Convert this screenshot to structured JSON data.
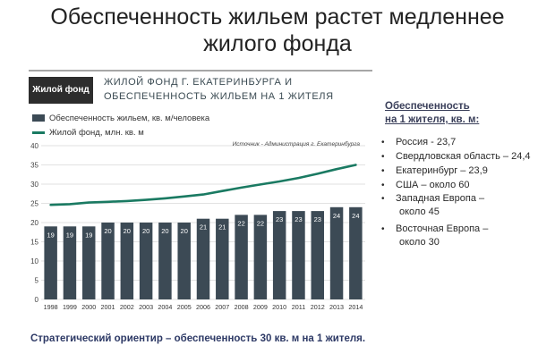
{
  "slide": {
    "title_line1": "Обеспеченность жильем растет медленнее",
    "title_line2": "жилого фонда",
    "bottom_note": "Стратегический ориентир – обеспеченность 30 кв. м на 1 жителя."
  },
  "chart_card": {
    "label": "Жилой фонд",
    "title_line1": "Жилой фонд г. Екатеринбурга и",
    "title_line2": "обеспеченность жильем на 1 жителя",
    "source": "Источник - Администрация г. Екатеринбурга"
  },
  "chart_data": {
    "type": "bar",
    "categories": [
      "1998",
      "1999",
      "2000",
      "2001",
      "2002",
      "2003",
      "2004",
      "2005",
      "2006",
      "2007",
      "2008",
      "2009",
      "2010",
      "2011",
      "2012",
      "2013",
      "2014"
    ],
    "series": [
      {
        "name": "Обеспеченность жильем, кв. м/человека",
        "type": "bar",
        "color": "#3c4a55",
        "values": [
          19,
          19,
          19,
          20,
          20,
          20,
          20,
          20,
          21,
          21,
          22,
          22,
          23,
          23,
          23,
          24,
          24
        ],
        "data_labels": [
          "19",
          "19",
          "19",
          "20",
          "20",
          "20",
          "20",
          "20",
          "21",
          "21",
          "22",
          "22",
          "23",
          "23",
          "23",
          "24",
          "24"
        ]
      },
      {
        "name": "Жилой фонд, млн. кв. м",
        "type": "line",
        "color": "#1a7a62",
        "values": [
          24.6,
          24.8,
          25.2,
          25.4,
          25.6,
          25.9,
          26.3,
          26.8,
          27.3,
          28.2,
          29.1,
          29.9,
          30.7,
          31.6,
          32.7,
          33.9,
          35.0
        ]
      }
    ],
    "yticks": [
      "0",
      "5",
      "10",
      "15",
      "20",
      "25",
      "30",
      "35",
      "40"
    ],
    "ylim": [
      0,
      40
    ],
    "grid": true,
    "legend_position": "top-left"
  },
  "stats": {
    "title_line1": "Обеспеченность",
    "title_line2": "на 1 жителя, кв. м:",
    "group1": [
      "Россия  - 23,7",
      "Свердловская область – 24,4",
      "Екатеринбург – 23,9"
    ],
    "group2": [
      "США – около 60"
    ],
    "group3": [
      {
        "line1": "Западная Европа –",
        "line2": "около 45"
      },
      {
        "line1": "Восточная Европа –",
        "line2": "около 30"
      }
    ]
  }
}
